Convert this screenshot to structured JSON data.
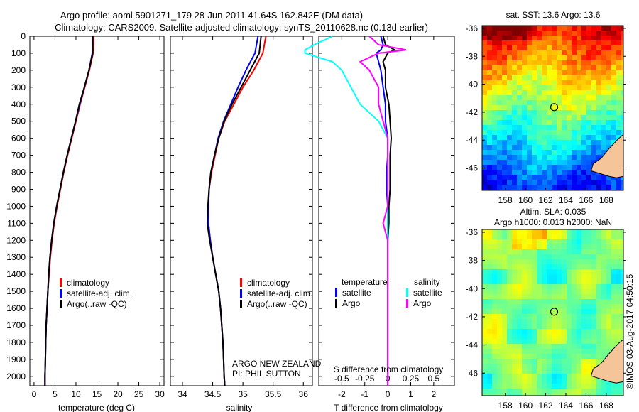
{
  "title_line1": "Argo profile: aoml 5901271_179 28-Jun-2011 41.64S 162.842E (DM data)",
  "title_line2": "Climatology: CARS2009. Satellite-adjusted climatology: synTS_20110628.nc (0.13d earlier)",
  "watermark": "©IMOS 03-Aug-2017 04:50:15",
  "colors": {
    "climatology": "#ff0000",
    "satellite": "#0000ff",
    "argo": "#000000",
    "sal_satellite": "#00ffff",
    "sal_argo": "#ff00ff",
    "land": "#f5c498"
  },
  "chart_data": [
    {
      "type": "line",
      "name": "temperature",
      "xlabel": "temperature (deg C)",
      "ylabel": "",
      "xlim": [
        -1,
        31
      ],
      "ylim": [
        2055,
        0
      ],
      "xticks": [
        "0",
        "5",
        "10",
        "15",
        "20",
        "25",
        "30"
      ],
      "xtick_values": [
        0,
        5,
        10,
        15,
        20,
        25,
        30
      ],
      "yticks": [
        "0",
        "100",
        "200",
        "300",
        "400",
        "500",
        "600",
        "700",
        "800",
        "900",
        "1000",
        "1100",
        "1200",
        "1300",
        "1400",
        "1500",
        "1600",
        "1700",
        "1800",
        "1900",
        "2000"
      ],
      "legend": [
        "climatology",
        "satellite-adj. clim.",
        "Argo(..raw -QC)"
      ],
      "depth": [
        0,
        100,
        200,
        300,
        400,
        500,
        600,
        700,
        800,
        900,
        1000,
        1100,
        1200,
        1300,
        1400,
        1500,
        1600,
        1700,
        1800,
        1900,
        2000,
        2055
      ],
      "series": [
        {
          "name": "climatology",
          "values": [
            14.2,
            14.1,
            13.2,
            12.1,
            11.0,
            10.0,
            9.0,
            8.0,
            7.1,
            6.3,
            5.5,
            4.8,
            4.3,
            3.9,
            3.6,
            3.3,
            3.1,
            2.9,
            2.8,
            2.7,
            2.6,
            2.6
          ]
        },
        {
          "name": "satellite-adj. clim.",
          "values": [
            13.9,
            13.9,
            13.1,
            12.0,
            10.9,
            9.9,
            8.9,
            7.9,
            7.0,
            6.2,
            5.4,
            4.7,
            4.2,
            3.8,
            3.5,
            3.3,
            3.1,
            2.9,
            2.8,
            2.7,
            2.6,
            2.6
          ]
        },
        {
          "name": "Argo(..raw -QC)",
          "values": [
            14.0,
            14.0,
            13.1,
            12.0,
            10.8,
            9.9,
            8.9,
            7.9,
            7.0,
            6.2,
            5.4,
            4.7,
            4.2,
            3.8,
            3.5,
            3.3,
            3.1,
            2.9,
            2.8,
            2.7,
            2.6,
            2.6
          ]
        }
      ]
    },
    {
      "type": "line",
      "name": "salinity",
      "xlabel": "salinity",
      "xlim": [
        33.8,
        36.15
      ],
      "ylim": [
        2055,
        0
      ],
      "xticks": [
        "34",
        "34.5",
        "35",
        "35.5",
        "36"
      ],
      "xtick_values": [
        34,
        34.5,
        35,
        35.5,
        36
      ],
      "legend": [
        "climatology",
        "satellite-adj. clim.",
        "Argo(..raw -QC)"
      ],
      "annotation": [
        "ARGO NEW ZEALAND",
        "PI: PHIL SUTTON"
      ],
      "depth": [
        0,
        100,
        200,
        300,
        400,
        500,
        600,
        700,
        800,
        900,
        1000,
        1100,
        1200,
        1300,
        1400,
        1500,
        1600,
        1700,
        1800,
        1900,
        2000,
        2055
      ],
      "series": [
        {
          "name": "climatology",
          "values": [
            35.38,
            35.33,
            35.18,
            35.0,
            34.85,
            34.7,
            34.6,
            34.54,
            34.48,
            34.44,
            34.43,
            34.43,
            34.46,
            34.5,
            34.55,
            34.6,
            34.63,
            34.65,
            34.67,
            34.68,
            34.69,
            34.7
          ]
        },
        {
          "name": "satellite-adj. clim.",
          "values": [
            35.25,
            35.2,
            35.05,
            34.92,
            34.8,
            34.68,
            34.59,
            34.53,
            34.47,
            34.44,
            34.43,
            34.43,
            34.46,
            34.5,
            34.55,
            34.6,
            34.63,
            34.65,
            34.67,
            34.68,
            34.69,
            34.7
          ]
        },
        {
          "name": "Argo(..raw -QC)",
          "values": [
            35.3,
            35.27,
            35.12,
            34.97,
            34.82,
            34.69,
            34.6,
            34.53,
            34.47,
            34.44,
            34.42,
            34.41,
            34.45,
            34.5,
            34.55,
            34.6,
            34.63,
            34.65,
            34.67,
            34.68,
            34.69,
            34.7
          ]
        }
      ]
    },
    {
      "type": "line",
      "name": "difference",
      "xlabel": "T difference from climatology",
      "x2label": "S difference from climatology",
      "xlim": [
        -3,
        2.9
      ],
      "ylim": [
        2055,
        0
      ],
      "xticks": [
        "-2",
        "-1",
        "0",
        "1",
        "2"
      ],
      "xtick_values": [
        -2,
        -1,
        0,
        1,
        2
      ],
      "x2ticks": [
        "-0.5",
        "-0.25",
        "0",
        "0.25",
        "0.5"
      ],
      "legend_temperature": {
        "title": "temperature",
        "items": [
          "satellite",
          "Argo"
        ]
      },
      "legend_salinity": {
        "title": "salinity",
        "items": [
          "satellite",
          "Argo"
        ]
      },
      "depth": [
        0,
        50,
        80,
        100,
        150,
        200,
        300,
        400,
        500,
        600,
        700,
        800,
        900,
        1000,
        1100,
        1200,
        1400,
        1600,
        1800,
        2000,
        2055
      ],
      "series": [
        {
          "name": "temperature satellite",
          "values": [
            -0.3,
            -0.2,
            -0.3,
            -0.5,
            -0.4,
            -0.3,
            -0.2,
            -0.1,
            -0.1,
            0,
            0,
            -0.05,
            -0.05,
            0,
            0,
            0,
            0,
            0,
            0,
            0,
            0
          ]
        },
        {
          "name": "temperature Argo",
          "values": [
            -0.2,
            -0.1,
            0.3,
            0,
            -0.2,
            -0.1,
            -0.1,
            0.05,
            0.1,
            0.15,
            0.1,
            0.1,
            0.1,
            0.05,
            0.05,
            0,
            0,
            0,
            0,
            0,
            0
          ]
        },
        {
          "name": "salinity satellite",
          "values": [
            -0.6,
            -0.8,
            -0.9,
            -0.9,
            -0.6,
            -0.5,
            -0.4,
            -0.3,
            -0.1,
            0,
            0,
            0,
            0,
            0,
            0,
            0,
            0,
            0,
            0,
            0,
            0
          ]
        },
        {
          "name": "salinity Argo",
          "values": [
            -0.2,
            -0.1,
            0.2,
            -0.1,
            -0.3,
            -0.2,
            -0.1,
            -0.1,
            -0.05,
            0,
            0,
            0,
            0,
            0,
            -0.05,
            0,
            0,
            0,
            0,
            0,
            0
          ]
        }
      ]
    },
    {
      "type": "heatmap",
      "name": "sst-map",
      "title": "sat. SST: 13.6 Argo: 13.6",
      "xticks": [
        "158",
        "160",
        "162",
        "164",
        "166",
        "168"
      ],
      "yticks": [
        "-36",
        "-38",
        "-40",
        "-42",
        "-44",
        "-46"
      ],
      "xlim": [
        155.7,
        169.7
      ],
      "ylim": [
        -47.6,
        -35.8
      ],
      "marker": [
        162.842,
        -41.64
      ]
    },
    {
      "type": "heatmap",
      "name": "sla-map",
      "title_line1": "Altim. SLA: 0.035",
      "title_line2": "Argo h1000: 0.013 h2000: NaN",
      "xticks": [
        "158",
        "160",
        "162",
        "164",
        "166",
        "168"
      ],
      "yticks": [
        "-36",
        "-38",
        "-40",
        "-42",
        "-44",
        "-46"
      ],
      "xlim": [
        155.7,
        169.7
      ],
      "ylim": [
        -47.6,
        -35.8
      ],
      "marker": [
        162.842,
        -41.64
      ]
    }
  ]
}
